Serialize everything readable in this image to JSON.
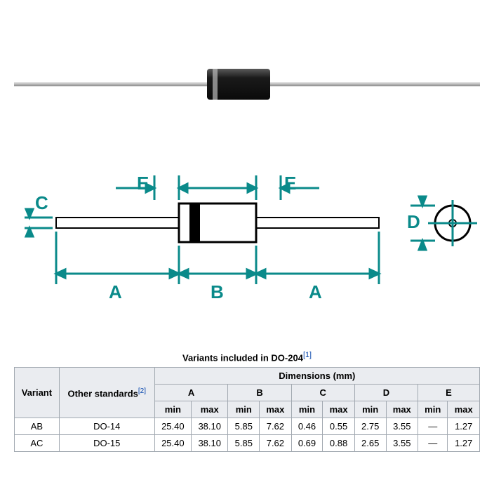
{
  "photo": {
    "lead_color": "#b8b8b8",
    "lead_highlight": "#e8e8e8",
    "body_color": "#1a1a1a",
    "body_highlight": "#4a4a4a",
    "band_color": "#cccccc"
  },
  "diagram": {
    "stroke_color": "#0a8a8a",
    "outline_color": "#000000",
    "label_color": "#0a8a8a",
    "label_fontsize": 24,
    "label_fontweight": "bold",
    "labels": {
      "A1": "A",
      "A2": "A",
      "B": "B",
      "C": "C",
      "D": "D",
      "E1": "E",
      "E2": "E"
    }
  },
  "table": {
    "caption": "Variants included in DO-204",
    "caption_ref": "[1]",
    "header_variant": "Variant",
    "header_other": "Other standards",
    "header_other_ref": "[2]",
    "header_dimensions": "Dimensions (mm)",
    "cols": [
      "A",
      "B",
      "C",
      "D",
      "E"
    ],
    "subheads": [
      "min",
      "max"
    ],
    "rows": [
      {
        "variant": "AB",
        "other": "DO-14",
        "vals": [
          "25.40",
          "38.10",
          "5.85",
          "7.62",
          "0.46",
          "0.55",
          "2.75",
          "3.55",
          "—",
          "1.27"
        ]
      },
      {
        "variant": "AC",
        "other": "DO-15",
        "vals": [
          "25.40",
          "38.10",
          "5.85",
          "7.62",
          "0.69",
          "0.88",
          "2.65",
          "3.55",
          "—",
          "1.27"
        ]
      }
    ]
  }
}
